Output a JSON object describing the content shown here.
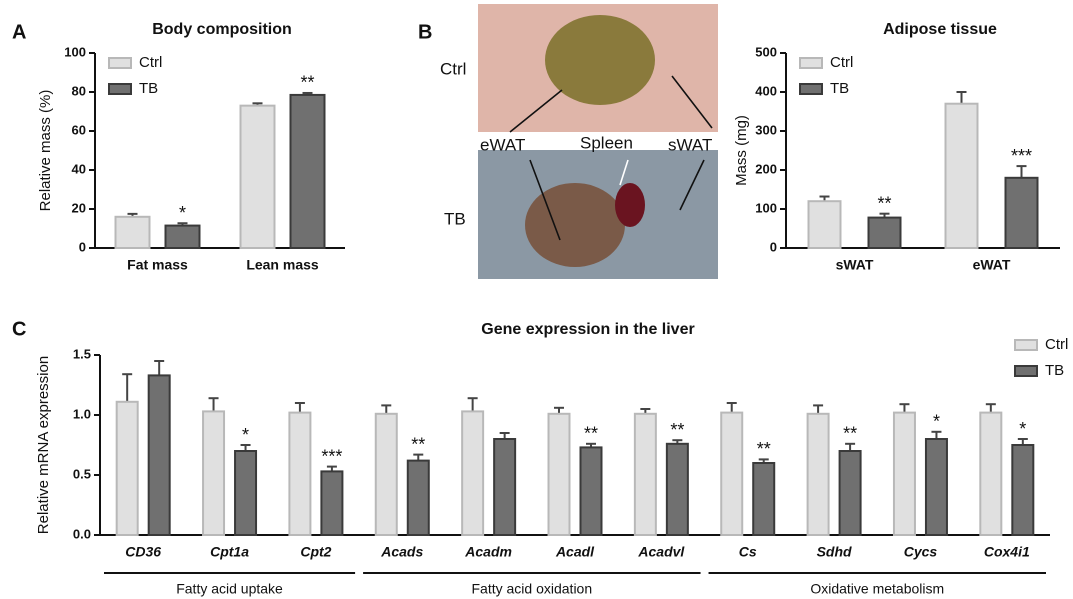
{
  "panel_labels": [
    "A",
    "B",
    "C"
  ],
  "photo": {
    "labels": [
      "Ctrl",
      "TB",
      "eWAT",
      "Spleen",
      "sWAT"
    ]
  },
  "chart_data": [
    {
      "type": "bar",
      "title": "Body composition",
      "y_label": "Relative mass (%)",
      "legend": "upper left",
      "categories": [
        "Fat mass",
        "Lean mass"
      ],
      "series": [
        {
          "name": "Ctrl",
          "color": "#e0e0e0",
          "values": [
            16,
            73
          ],
          "errors": [
            1.5,
            1.2
          ]
        },
        {
          "name": "TB",
          "color": "#707070",
          "values": [
            11.5,
            78.5
          ],
          "errors": [
            1.2,
            1
          ],
          "significance": [
            "*",
            "**"
          ]
        }
      ],
      "ylim": [
        0,
        100
      ],
      "yticks": [
        0,
        20,
        40,
        60,
        80,
        100
      ]
    },
    {
      "type": "bar",
      "title": "Adipose tissue",
      "y_label": "Mass (mg)",
      "legend": "upper left",
      "categories": [
        "sWAT",
        "eWAT"
      ],
      "series": [
        {
          "name": "Ctrl",
          "color": "#e0e0e0",
          "values": [
            120,
            370
          ],
          "errors": [
            12,
            30
          ]
        },
        {
          "name": "TB",
          "color": "#707070",
          "values": [
            78,
            180
          ],
          "errors": [
            10,
            30
          ],
          "significance": [
            "**",
            "***"
          ]
        }
      ],
      "ylim": [
        0,
        500
      ],
      "yticks": [
        0,
        100,
        200,
        300,
        400,
        500
      ]
    },
    {
      "type": "bar",
      "title": "Gene expression in the liver",
      "y_label": "Relative mRNA expression",
      "legend": "right",
      "categories": [
        "CD36",
        "Cpt1a",
        "Cpt2",
        "Acads",
        "Acadm",
        "Acadl",
        "Acadvl",
        "Cs",
        "Sdhd",
        "Cycs",
        "Cox4i1"
      ],
      "groups": [
        {
          "label": "Fatty acid uptake",
          "count": 3
        },
        {
          "label": "Fatty acid oxidation",
          "count": 4
        },
        {
          "label": "Oxidative metabolism",
          "count": 4
        }
      ],
      "series": [
        {
          "name": "Ctrl",
          "color": "#e0e0e0",
          "values": [
            1.11,
            1.03,
            1.02,
            1.01,
            1.03,
            1.01,
            1.01,
            1.02,
            1.01,
            1.02,
            1.02
          ],
          "errors": [
            0.23,
            0.11,
            0.08,
            0.07,
            0.11,
            0.05,
            0.04,
            0.08,
            0.07,
            0.07,
            0.07
          ]
        },
        {
          "name": "TB",
          "color": "#707070",
          "values": [
            1.33,
            0.7,
            0.53,
            0.62,
            0.8,
            0.73,
            0.76,
            0.6,
            0.7,
            0.8,
            0.75
          ],
          "errors": [
            0.12,
            0.05,
            0.04,
            0.05,
            0.05,
            0.03,
            0.03,
            0.03,
            0.06,
            0.06,
            0.05
          ],
          "significance": [
            null,
            "*",
            "***",
            "**",
            null,
            "**",
            "**",
            "**",
            "**",
            "*",
            "*"
          ]
        }
      ],
      "ylim": [
        0,
        1.5
      ],
      "yticks": [
        {
          "value": 0,
          "label": "0.0"
        },
        0.5,
        {
          "value": 1,
          "label": "1.0"
        },
        1.5
      ]
    }
  ]
}
